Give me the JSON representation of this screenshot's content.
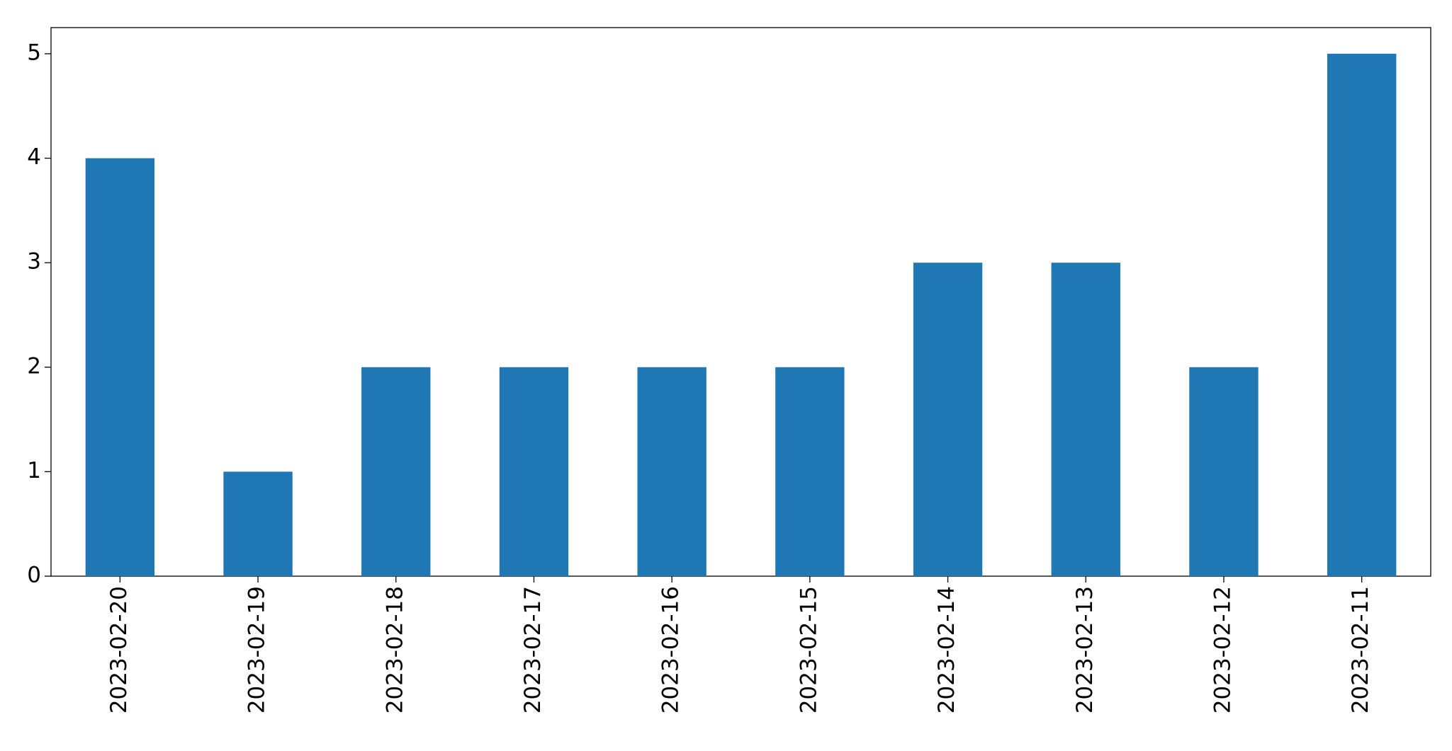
{
  "chart_data": {
    "type": "bar",
    "categories": [
      "2023-02-20",
      "2023-02-19",
      "2023-02-18",
      "2023-02-17",
      "2023-02-16",
      "2023-02-15",
      "2023-02-14",
      "2023-02-13",
      "2023-02-12",
      "2023-02-11"
    ],
    "values": [
      4,
      1,
      2,
      2,
      2,
      2,
      3,
      3,
      2,
      5
    ],
    "color": "#1f77b4",
    "ylim": [
      0,
      5.25
    ],
    "yticks": [
      0,
      1,
      2,
      3,
      4,
      5
    ],
    "grid": false
  }
}
